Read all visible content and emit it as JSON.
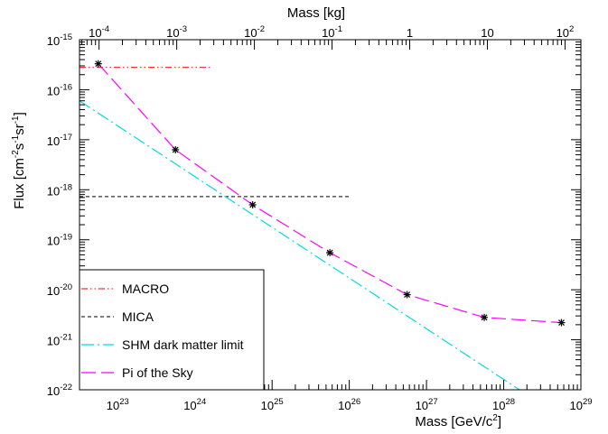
{
  "chart_data": {
    "type": "line",
    "x_scale": "log",
    "y_scale": "log",
    "xlim": [
      3.2e+22,
      1e+29
    ],
    "ylim": [
      1e-22,
      1e-15
    ],
    "top_xlim_kg": [
      5.6e-05,
      160.0
    ],
    "xlabel": "Mass [GeV/c",
    "xlabel_sup": "2",
    "xlabel_tail": "]",
    "ylabel": "Flux [cm",
    "ylabel_sup1": "-2",
    "ylabel_mid1": "s",
    "ylabel_sup2": "-1",
    "ylabel_mid2": "sr",
    "ylabel_sup3": "-1",
    "ylabel_tail": "]",
    "top_xlabel": "Mass [kg]",
    "x_ticks": [
      {
        "base": "10",
        "exp": "23",
        "value": 1e+23
      },
      {
        "base": "10",
        "exp": "24",
        "value": 1e+24
      },
      {
        "base": "10",
        "exp": "25",
        "value": 1e+25
      },
      {
        "base": "10",
        "exp": "26",
        "value": 1e+26
      },
      {
        "base": "10",
        "exp": "27",
        "value": 1e+27
      },
      {
        "base": "10",
        "exp": "28",
        "value": 1e+28
      },
      {
        "base": "10",
        "exp": "29",
        "value": 1e+29
      }
    ],
    "top_x_ticks": [
      {
        "base": "10",
        "exp": "-4",
        "value": 0.0001
      },
      {
        "base": "10",
        "exp": "-3",
        "value": 0.001
      },
      {
        "base": "10",
        "exp": "-2",
        "value": 0.01
      },
      {
        "base": "10",
        "exp": "-1",
        "value": 0.1
      },
      {
        "base": "1",
        "exp": "",
        "value": 1
      },
      {
        "base": "10",
        "exp": "",
        "value": 10
      },
      {
        "base": "10",
        "exp": "2",
        "value": 100
      }
    ],
    "y_ticks": [
      {
        "base": "10",
        "exp": "-15",
        "value": 1e-15
      },
      {
        "base": "10",
        "exp": "-16",
        "value": 1e-16
      },
      {
        "base": "10",
        "exp": "-17",
        "value": 1e-17
      },
      {
        "base": "10",
        "exp": "-18",
        "value": 1e-18
      },
      {
        "base": "10",
        "exp": "-19",
        "value": 1e-19
      },
      {
        "base": "10",
        "exp": "-20",
        "value": 1e-20
      },
      {
        "base": "10",
        "exp": "-21",
        "value": 1e-21
      },
      {
        "base": "10",
        "exp": "-22",
        "value": 1e-22
      }
    ],
    "series": [
      {
        "name": "MACRO",
        "color": "#ff3030",
        "dash": "dash-dot-dot",
        "x": [
          3.2e+22,
          1.6e+24
        ],
        "y": [
          2.8e-16,
          2.8e-16
        ],
        "markers": false
      },
      {
        "name": "MICA",
        "color": "#333333",
        "dash": "dashed",
        "x": [
          3.2e+22,
          1e+26
        ],
        "y": [
          7.3e-19,
          7.3e-19
        ],
        "markers": false
      },
      {
        "name": "SHM dark matter limit",
        "color": "#00dddd",
        "dash": "dash-dot",
        "x": [
          3.2e+22,
          1.6e+28
        ],
        "y": [
          6e-17,
          1e-22
        ],
        "markers": false
      },
      {
        "name": "Pi of the Sky",
        "color": "#ff00ff",
        "dash": "long-dash",
        "x": [
          5.6e+22,
          5.6e+23,
          5.6e+24,
          5.6e+25,
          5.6e+26,
          5.6e+27,
          5.6e+28
        ],
        "y": [
          3.3e-16,
          6.3e-18,
          5e-19,
          5.5e-20,
          8e-21,
          2.8e-21,
          2.2e-21
        ],
        "markers": true
      }
    ],
    "legend_position": "bottom-left"
  }
}
